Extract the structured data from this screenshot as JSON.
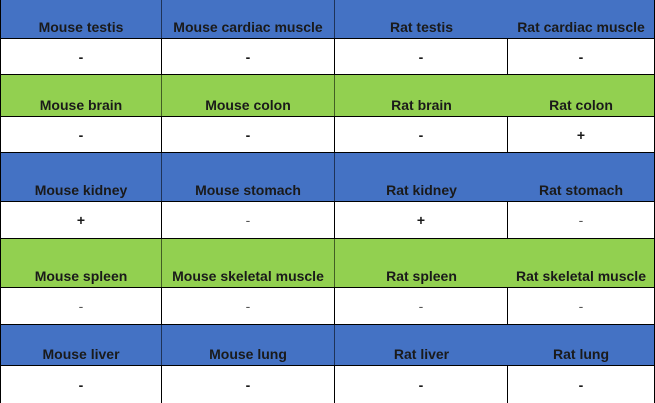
{
  "colors": {
    "blue_header": "#4472c4",
    "green_header": "#92d050",
    "value_background": "#ffffff"
  },
  "rows": [
    {
      "color": "blue",
      "labels": [
        "Mouse testis",
        "Mouse cardiac muscle",
        "Rat testis",
        "Rat cardiac muscle"
      ],
      "values": [
        "-",
        "-",
        "-",
        "-"
      ]
    },
    {
      "color": "green",
      "labels": [
        "Mouse brain",
        "Mouse colon",
        "Rat brain",
        "Rat colon"
      ],
      "values": [
        "-",
        "-",
        "-",
        "+"
      ]
    },
    {
      "color": "blue",
      "labels": [
        "Mouse kidney",
        "Mouse stomach",
        "Rat kidney",
        "Rat stomach"
      ],
      "values": [
        "+",
        "-",
        "+",
        "-"
      ]
    },
    {
      "color": "green",
      "labels": [
        "Mouse spleen",
        "Mouse skeletal muscle",
        "Rat spleen",
        "Rat skeletal muscle"
      ],
      "values": [
        "-",
        "-",
        "-",
        "-"
      ]
    },
    {
      "color": "blue",
      "labels": [
        "Mouse liver",
        "Mouse lung",
        "Rat liver",
        "Rat lung"
      ],
      "values": [
        "-",
        "-",
        "-",
        "-"
      ]
    }
  ]
}
